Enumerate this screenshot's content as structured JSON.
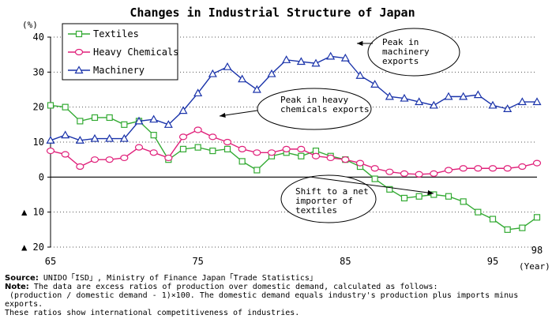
{
  "chart_data": {
    "type": "line",
    "title": "Changes in Industrial Structure of Japan",
    "ylabel": "(%)",
    "xlabel": "(Year)",
    "x": [
      65,
      66,
      67,
      68,
      69,
      70,
      71,
      72,
      73,
      74,
      75,
      76,
      77,
      78,
      79,
      80,
      81,
      82,
      83,
      84,
      85,
      86,
      87,
      88,
      89,
      90,
      91,
      92,
      93,
      94,
      95,
      96,
      97,
      98
    ],
    "xlim": [
      65,
      98
    ],
    "ylim": [
      -20,
      40
    ],
    "y_ticks": [
      {
        "value": 40,
        "label": "40"
      },
      {
        "value": 30,
        "label": "30"
      },
      {
        "value": 20,
        "label": "20"
      },
      {
        "value": 10,
        "label": "10"
      },
      {
        "value": 0,
        "label": "0"
      },
      {
        "value": -10,
        "label": "▲ 10"
      },
      {
        "value": -20,
        "label": "▲ 20"
      }
    ],
    "x_ticks": [
      {
        "value": 65,
        "label": "65"
      },
      {
        "value": 75,
        "label": "75"
      },
      {
        "value": 85,
        "label": "85"
      },
      {
        "value": 95,
        "label": "95"
      },
      {
        "value": 98,
        "label": "98"
      }
    ],
    "grid": "horizontal dotted",
    "legend_position": "top-left",
    "series": [
      {
        "name": "Textiles",
        "color": "#33aa33",
        "marker": "square",
        "values": [
          20.5,
          20,
          16,
          17,
          17,
          15,
          16,
          12,
          5,
          8,
          8.5,
          7.5,
          8,
          4.5,
          2,
          6,
          7,
          6,
          7.5,
          6,
          5,
          3,
          -0.5,
          -3.5,
          -6,
          -5.5,
          -5,
          -5.5,
          -7,
          -10,
          -12,
          -15,
          -14.5,
          -11.5
        ]
      },
      {
        "name": "Heavy Chemicals",
        "color": "#e0207a",
        "marker": "circle",
        "values": [
          7.5,
          6.5,
          3,
          5,
          5,
          5.5,
          8.5,
          7,
          5.5,
          11.5,
          13.5,
          11.5,
          10,
          8,
          7,
          7,
          8,
          8,
          6,
          5.5,
          5,
          4,
          2.5,
          1.5,
          1,
          0.8,
          1,
          2,
          2.5,
          2.5,
          2.5,
          2.5,
          3,
          4
        ]
      },
      {
        "name": "Machinery",
        "color": "#1a33aa",
        "marker": "triangle",
        "values": [
          10.5,
          12,
          10.5,
          11,
          11,
          11,
          16,
          16.5,
          15,
          19,
          24,
          29.5,
          31.5,
          28,
          25,
          29.5,
          33.5,
          33,
          32.5,
          34.5,
          34,
          29,
          26.5,
          23,
          22.5,
          21.5,
          20.5,
          23,
          23,
          23.5,
          20.5,
          19.5,
          21.5,
          21.5
        ]
      }
    ],
    "annotations": [
      {
        "lines": [
          "Peak in",
          "machinery",
          "exports"
        ]
      },
      {
        "lines": [
          "Peak in heavy",
          "chemicals exports"
        ]
      },
      {
        "lines": [
          "Shift to a net",
          "importer of",
          "textiles"
        ]
      }
    ]
  },
  "notes": {
    "source_label": "Source:",
    "source_text": " UNIDO「ISD」, Ministry of Finance Japan「Trade Statistics」",
    "note_label": "Note:",
    "note_text": " The data are excess ratios of production over domestic demand, calculated as follows:",
    "line3": " (production / domestic demand - 1)×100. The domestic demand equals industry's production plus imports minus",
    "line4": "exports.",
    "line5": "These ratios show international competitiveness of industries."
  }
}
